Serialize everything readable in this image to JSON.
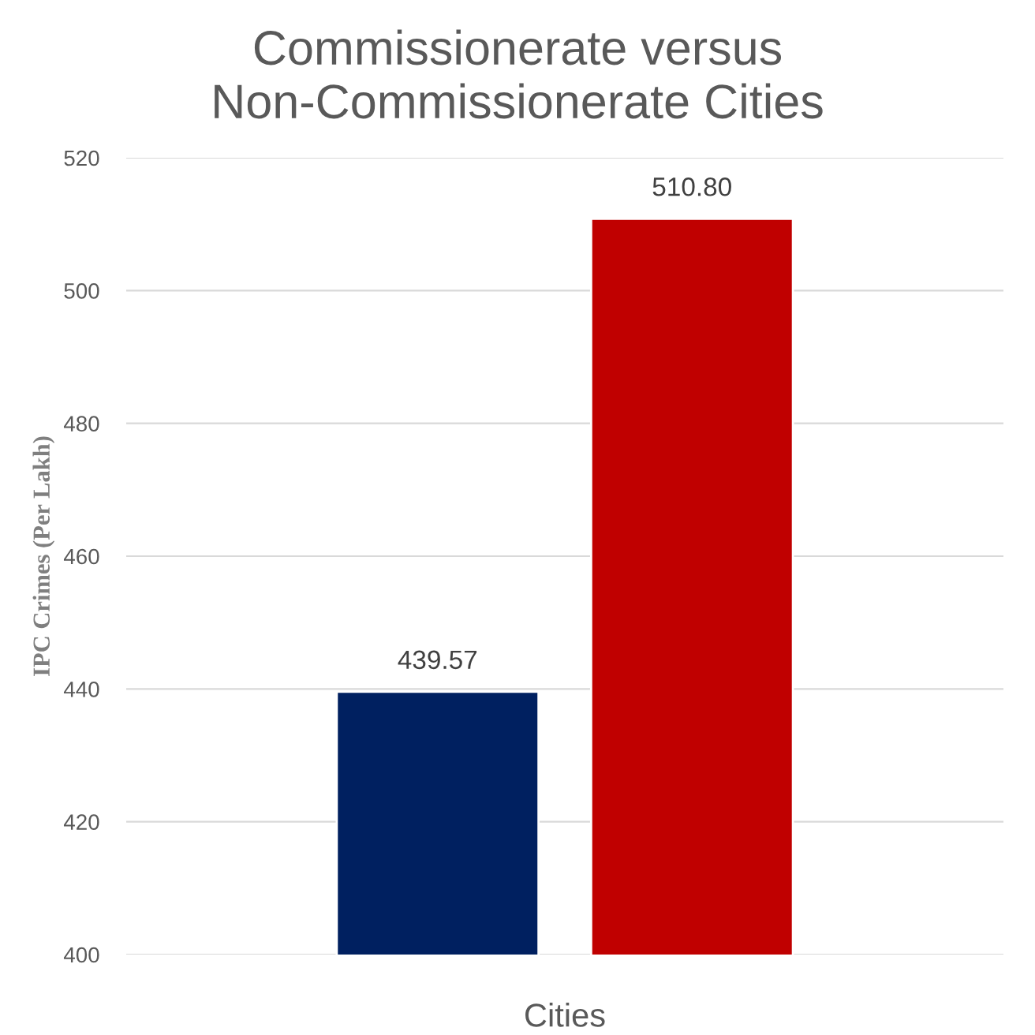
{
  "chart_data": {
    "type": "bar",
    "title": "Commissionerate versus\nNon-Commissionerate Cities",
    "ylabel": "IPC Crimes (Per Lakh)",
    "categories": [
      "Cities"
    ],
    "series": [
      {
        "color": "#002060",
        "values": [
          439.57
        ],
        "value_labels": [
          "439.57"
        ]
      },
      {
        "color": "#c00000",
        "values": [
          510.8
        ],
        "value_labels": [
          "510.80"
        ]
      }
    ],
    "ylim": [
      400,
      520
    ],
    "yticks": [
      400,
      420,
      440,
      460,
      480,
      500,
      520
    ],
    "grid": "y"
  }
}
